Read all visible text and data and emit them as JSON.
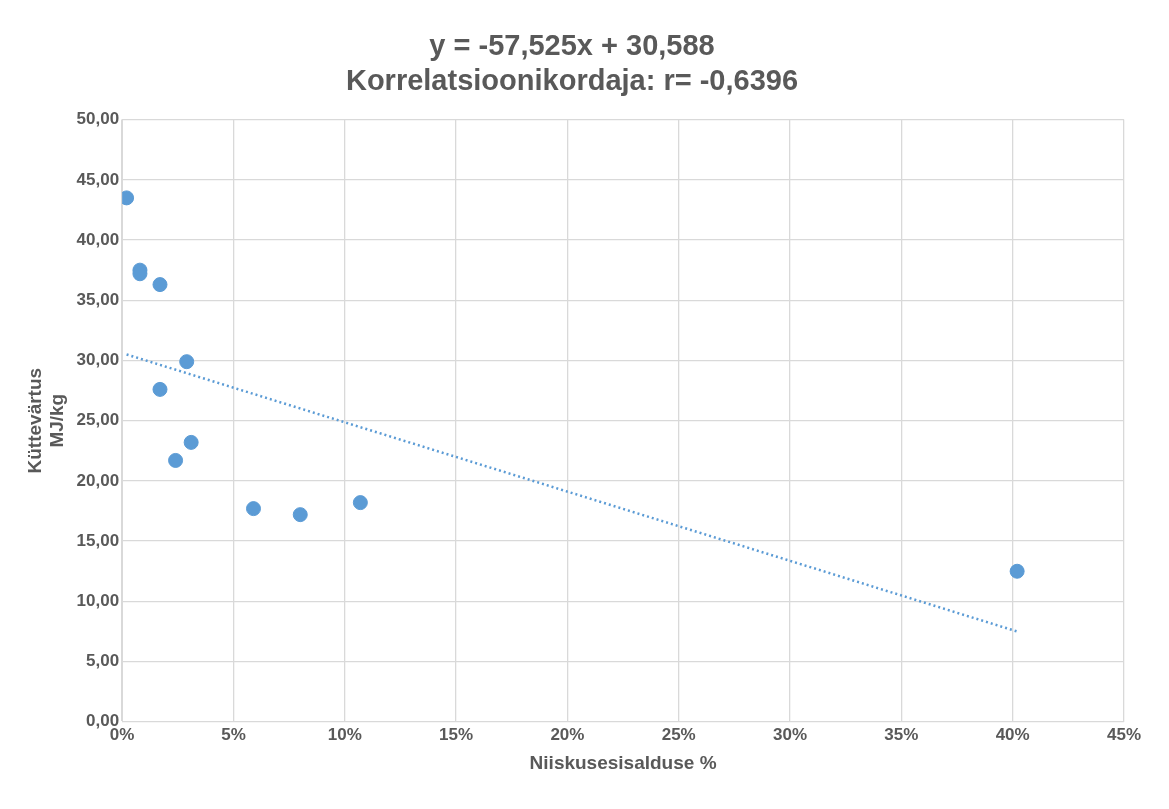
{
  "chart_data": {
    "type": "scatter",
    "title": "y = -57,525x + 30,588\nKorrelatsioonikordaja: r= -0,6396",
    "xlabel": "Niiskusesisalduse %",
    "ylabel": "Küttevärtus\nMJ/kg",
    "series": [
      {
        "color": "#5b9bd5",
        "marker": "circle",
        "x": [
          0.2,
          0.8,
          0.8,
          1.7,
          2.9,
          1.7,
          3.1,
          2.4,
          5.9,
          8.0,
          10.7,
          40.2
        ],
        "values": [
          43.5,
          37.5,
          37.2,
          36.3,
          29.9,
          27.6,
          23.2,
          21.7,
          17.7,
          17.2,
          18.2,
          12.5
        ]
      },
      {
        "type": "line",
        "color": "#5b9bd5",
        "line_style": "dotted",
        "marker": "none",
        "x": [
          0.2,
          40.2
        ],
        "values": [
          30.5,
          7.5
        ]
      }
    ],
    "xlim": [
      0,
      45
    ],
    "xticks": [
      {
        "value": 0,
        "label": "0%"
      },
      {
        "value": 5,
        "label": "5%"
      },
      {
        "value": 10,
        "label": "10%"
      },
      {
        "value": 15,
        "label": "15%"
      },
      {
        "value": 20,
        "label": "20%"
      },
      {
        "value": 25,
        "label": "25%"
      },
      {
        "value": 30,
        "label": "30%"
      },
      {
        "value": 35,
        "label": "35%"
      },
      {
        "value": 40,
        "label": "40%"
      },
      {
        "value": 45,
        "label": "45%"
      }
    ],
    "ylim": [
      0,
      50
    ],
    "yticks": [
      {
        "value": 0,
        "label": "0,00"
      },
      {
        "value": 5,
        "label": "5,00"
      },
      {
        "value": 10,
        "label": "10,00"
      },
      {
        "value": 15,
        "label": "15,00"
      },
      {
        "value": 20,
        "label": "20,00"
      },
      {
        "value": 25,
        "label": "25,00"
      },
      {
        "value": 30,
        "label": "30,00"
      },
      {
        "value": 35,
        "label": "35,00"
      },
      {
        "value": 40,
        "label": "40,00"
      },
      {
        "value": 45,
        "label": "45,00"
      },
      {
        "value": 50,
        "label": "50,00"
      }
    ],
    "grid": true,
    "legend": false
  }
}
